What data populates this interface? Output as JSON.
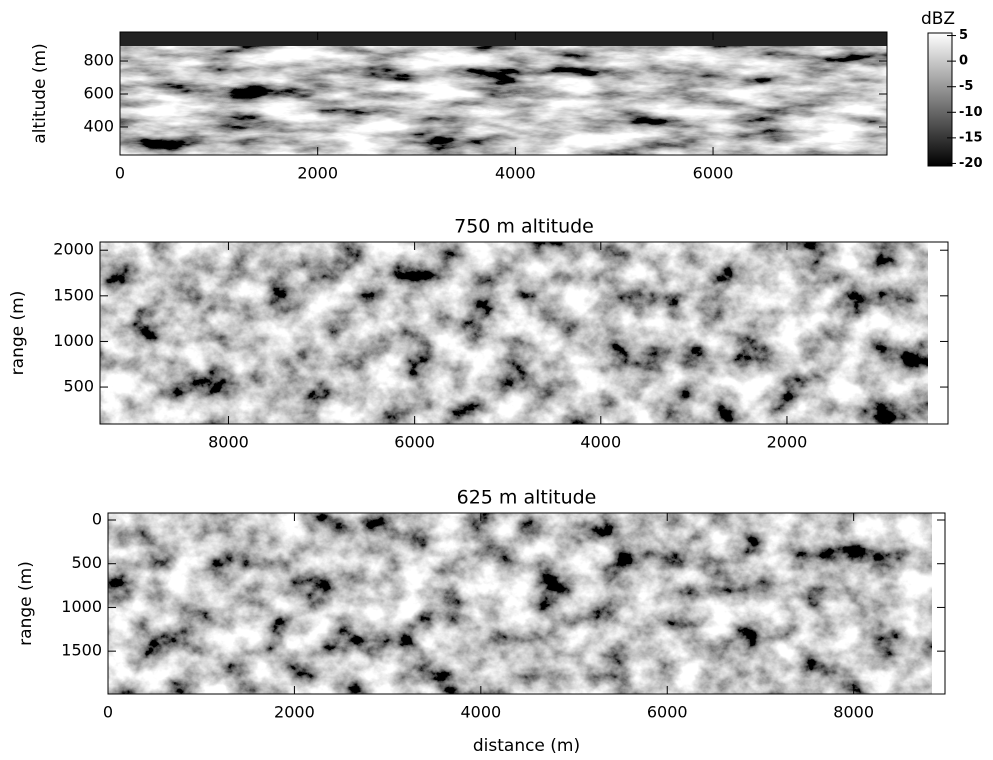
{
  "chart_data": [
    {
      "type": "image",
      "ylabel": "altitude (m)",
      "xlim": [
        0,
        7760
      ],
      "xticks": [
        0,
        2000,
        4000,
        6000
      ],
      "ylim": [
        230,
        976
      ],
      "yticks": [
        400,
        600,
        800
      ]
    },
    {
      "type": "image",
      "title": "750 m altitude",
      "ylabel": "range (m)",
      "xlim": [
        9380,
        270
      ],
      "xticks": [
        8000,
        6000,
        4000,
        2000
      ],
      "ylim": [
        95,
        2090
      ],
      "yticks": [
        500,
        1000,
        1500,
        2000
      ]
    },
    {
      "type": "image",
      "title": "625 m altitude",
      "ylabel": "range (m)",
      "xlabel": "distance (m)",
      "xlim": [
        0,
        8980
      ],
      "xticks": [
        0,
        2000,
        4000,
        6000,
        8000
      ],
      "ylim": [
        1990,
        -80
      ],
      "yticks": [
        0,
        500,
        1000,
        1500
      ]
    },
    {
      "type": "colorbar",
      "title": "dBZ",
      "ylim": [
        -20.5,
        5.5
      ],
      "yticks": [
        5,
        0,
        -5,
        -10,
        -15,
        -20
      ]
    }
  ]
}
